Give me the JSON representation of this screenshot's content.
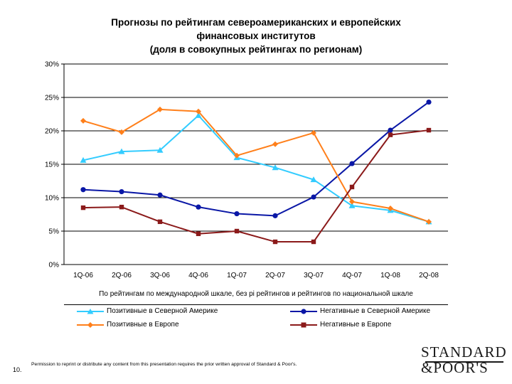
{
  "title_lines": [
    "Прогнозы по рейтингам североамериканских и европейских",
    "финансовых институтов",
    "(доля в совокупных рейтингах по регионам)"
  ],
  "chart_data": {
    "type": "line",
    "title": "Прогнозы по рейтингам североамериканских и европейских финансовых институтов (доля в совокупных рейтингах по регионам)",
    "categories": [
      "1Q-06",
      "2Q-06",
      "3Q-06",
      "4Q-06",
      "1Q-07",
      "2Q-07",
      "3Q-07",
      "4Q-07",
      "1Q-08",
      "2Q-08"
    ],
    "y_ticks": [
      "0%",
      "5%",
      "10%",
      "15%",
      "20%",
      "25%",
      "30%"
    ],
    "ylim": [
      0,
      30
    ],
    "xlabel": "По рейтингам по международной шкале, без pi рейтингов и рейтингов по национальной шкале",
    "ylabel": "",
    "series": [
      {
        "name": "Позитивные в Северной Америке",
        "color": "#33ccff",
        "marker": "triangle",
        "values": [
          15.6,
          16.9,
          17.1,
          22.3,
          16.0,
          14.5,
          12.7,
          8.8,
          8.1,
          6.4
        ]
      },
      {
        "name": "Негативные в Северной Америке",
        "color": "#0a17a6",
        "marker": "circle",
        "values": [
          11.2,
          10.9,
          10.4,
          8.6,
          7.6,
          7.3,
          10.1,
          15.1,
          20.1,
          24.3
        ]
      },
      {
        "name": "Позитивные в Европе",
        "color": "#ff7f1a",
        "marker": "diamond",
        "values": [
          21.5,
          19.8,
          23.2,
          22.9,
          16.3,
          18.0,
          19.7,
          9.4,
          8.4,
          6.4
        ]
      },
      {
        "name": "Негативные в Европе",
        "color": "#8b1a1a",
        "marker": "square",
        "values": [
          8.5,
          8.6,
          6.4,
          4.6,
          5.0,
          3.4,
          3.4,
          11.6,
          19.4,
          20.1
        ]
      }
    ]
  },
  "legend": {
    "pos_na": "Позитивные в Северной Америке",
    "neg_na": "Негативные в Северной Америке",
    "pos_eu": "Позитивные в Европе",
    "neg_eu": "Негативные в Европе"
  },
  "footer": {
    "page_number": "10.",
    "permission": "Permission to reprint or distribute any content from this presentation requires the prior written approval of Standard & Poor's.",
    "logo_line1": "STANDARD",
    "logo_line2": "&POOR'S"
  }
}
